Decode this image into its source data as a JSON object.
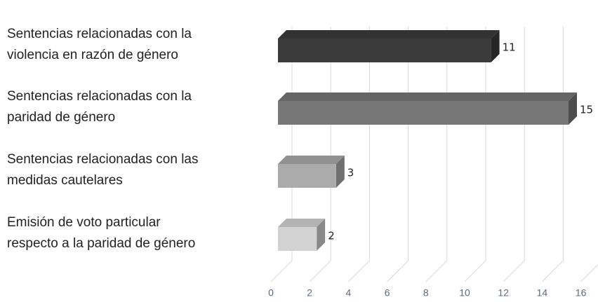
{
  "chart_data": {
    "type": "bar3d_horizontal",
    "categories": [
      [
        "Sentencias relacionadas con la",
        "violencia en razón de género"
      ],
      [
        "Sentencias relacionadas con la",
        "paridad de género"
      ],
      [
        "Sentencias relacionadas con las",
        "medidas cautelares"
      ],
      [
        "Emisión de voto particular",
        "respecto a la paridad de género"
      ]
    ],
    "values": [
      11,
      15,
      3,
      2
    ],
    "colors": [
      "#3b3b3b",
      "#777777",
      "#ababab",
      "#d2d2d2"
    ],
    "xlim": [
      0,
      16
    ],
    "xticks": [
      0,
      2,
      4,
      6,
      8,
      10,
      12,
      14,
      16
    ],
    "grid": true
  }
}
